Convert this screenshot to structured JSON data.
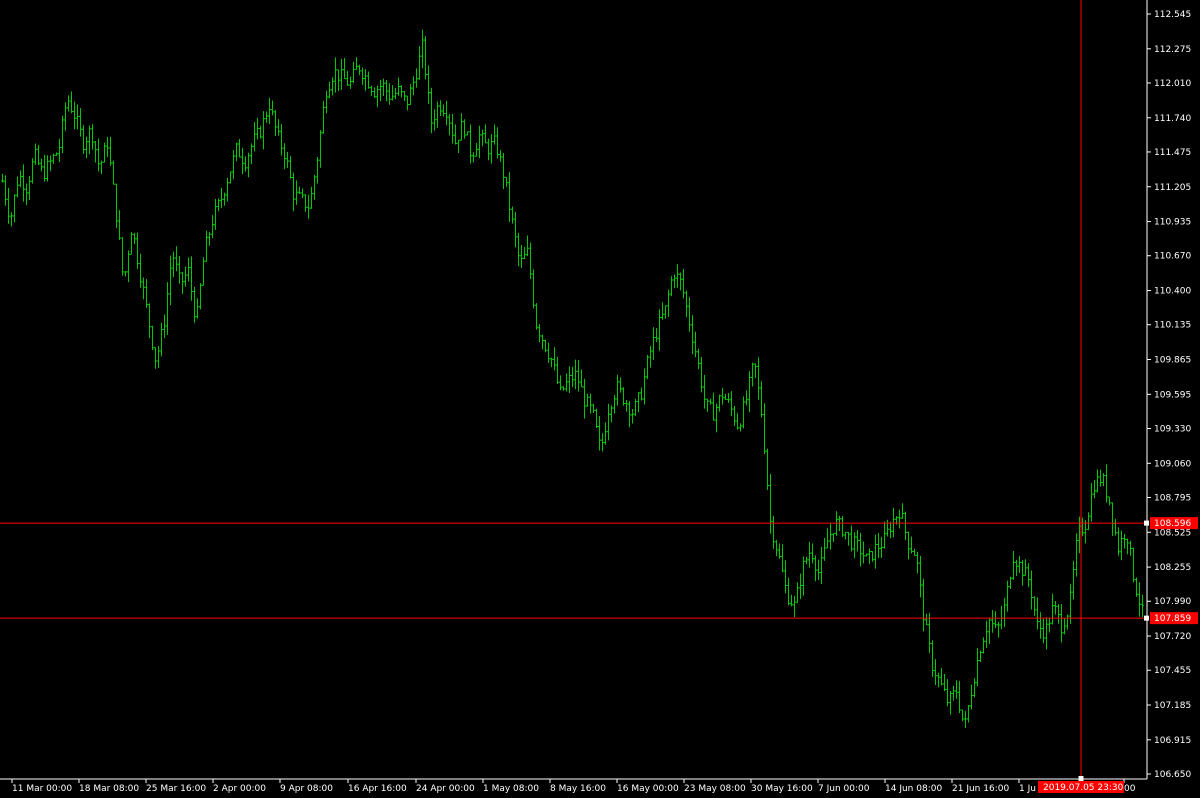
{
  "chart_data": {
    "type": "bar",
    "style": "ohlc",
    "series_color": "#00c800",
    "background": "#000000",
    "axis_color": "#ffffff",
    "ylim": [
      106.55,
      112.65
    ],
    "y_ticks": [
      "112.545",
      "112.275",
      "112.010",
      "111.740",
      "111.475",
      "111.205",
      "110.935",
      "110.670",
      "110.400",
      "110.135",
      "109.865",
      "109.595",
      "109.330",
      "109.060",
      "108.795",
      "108.525",
      "108.255",
      "107.990",
      "107.720",
      "107.455",
      "107.185",
      "106.915",
      "106.650"
    ],
    "x_ticks": [
      "11 Mar 00:00",
      "18 Mar 08:00",
      "25 Mar 16:00",
      "2 Apr 00:00",
      "9 Apr 08:00",
      "16 Apr 16:00",
      "24 Apr 00:00",
      "1 May 08:00",
      "8 May 16:00",
      "16 May 00:00",
      "23 May 08:00",
      "30 May 16:00",
      "7 Jun 00:00",
      "14 Jun 08:00",
      "21 Jun 16:00",
      "1 Ju",
      "00"
    ],
    "price_path": [
      111.25,
      110.95,
      111.3,
      111.2,
      111.45,
      111.3,
      111.4,
      111.5,
      111.9,
      111.75,
      111.55,
      111.65,
      111.35,
      111.55,
      111.05,
      110.45,
      110.9,
      110.55,
      110.2,
      109.85,
      110.15,
      110.7,
      110.45,
      110.55,
      110.15,
      110.7,
      110.95,
      111.1,
      111.3,
      111.5,
      111.4,
      111.55,
      111.65,
      111.85,
      111.6,
      111.45,
      111.15,
      111.1,
      111.05,
      111.45,
      111.95,
      112.1,
      112.05,
      112.0,
      112.15,
      112.05,
      111.95,
      112.0,
      111.9,
      111.95,
      111.85,
      112.05,
      112.3,
      111.7,
      111.85,
      111.8,
      111.55,
      111.7,
      111.45,
      111.6,
      111.5,
      111.55,
      111.3,
      110.95,
      110.6,
      110.7,
      110.15,
      110.0,
      109.85,
      109.6,
      109.7,
      109.75,
      109.55,
      109.45,
      109.15,
      109.5,
      109.65,
      109.55,
      109.45,
      109.6,
      109.9,
      110.1,
      110.25,
      110.55,
      110.45,
      110.15,
      109.85,
      109.5,
      109.45,
      109.6,
      109.5,
      109.35,
      109.55,
      109.85,
      109.4,
      108.6,
      108.35,
      108.05,
      107.95,
      108.25,
      108.4,
      108.2,
      108.45,
      108.6,
      108.55,
      108.45,
      108.4,
      108.3,
      108.4,
      108.45,
      108.6,
      108.7,
      108.45,
      108.35,
      107.85,
      107.5,
      107.35,
      107.2,
      107.3,
      107.0,
      107.35,
      107.65,
      107.85,
      107.75,
      107.95,
      108.35,
      108.25,
      108.15,
      107.8,
      107.75,
      107.95,
      107.8,
      107.95,
      108.5,
      108.6,
      108.9,
      108.95,
      108.75,
      108.4,
      108.55,
      108.15,
      107.9
    ],
    "horizontal_lines": [
      {
        "label": "108.596",
        "value": 108.596,
        "color": "#ff0000"
      },
      {
        "label": "107.859",
        "value": 107.859,
        "color": "#ff0000"
      }
    ],
    "crosshair": {
      "label": "2019.07.05 23:30",
      "color": "#ff0000"
    }
  }
}
